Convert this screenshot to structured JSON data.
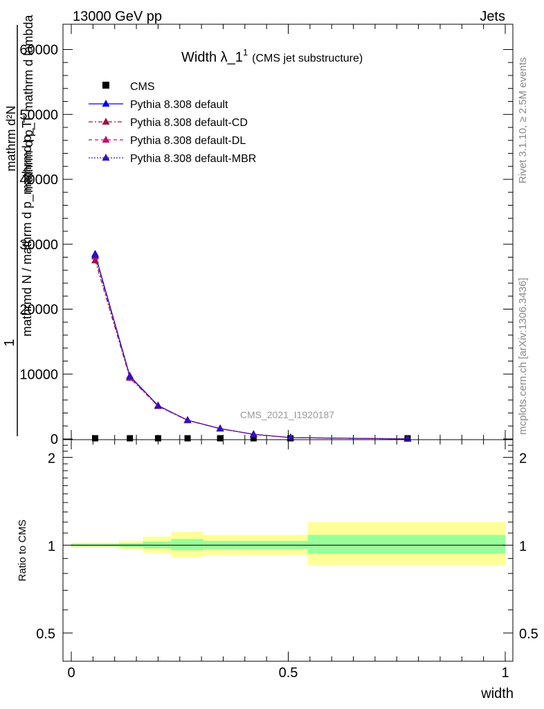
{
  "header": {
    "beam_label": "13000 GeV pp",
    "process_label": "Jets"
  },
  "side_labels": {
    "rivet": "Rivet 3.1.10, ≥ 2.5M events",
    "mcplots": "mcplots.cern.ch [arXiv:1306.3436]"
  },
  "watermark": "CMS_2021_I1920187",
  "chart_data": [
    {
      "type": "line",
      "title": "Width λ_1",
      "title_superscript": "1",
      "subtitle": "(CMS jet substructure)",
      "ylabel_fraction_numerator": "1",
      "ylabel_fraction_denominator": "mathrmd N / mathrm d p_mathrmd p_T",
      "ylabel_inner_numerator": "mathrm d²N",
      "ylabel_inner_denominator": "mathrm d p_T mathrm d lambda",
      "xlim": [
        0,
        1
      ],
      "ylim": [
        0,
        64000
      ],
      "yticks": [
        0,
        10000,
        20000,
        30000,
        40000,
        50000,
        60000
      ],
      "ytick_labels": [
        "0",
        "10000",
        "20000",
        "30000",
        "40000",
        "50000",
        "60000"
      ],
      "legend_position": "top-left",
      "x": [
        0.055,
        0.135,
        0.2,
        0.268,
        0.343,
        0.42,
        0.505,
        0.775
      ],
      "series": [
        {
          "name": "CMS",
          "color": "#000000",
          "marker": "square",
          "line": "none",
          "values": [
            0,
            0,
            0,
            0,
            0,
            0,
            0,
            0
          ]
        },
        {
          "name": "Pythia 8.308 default",
          "color": "#0000ee",
          "marker": "triangle",
          "line": "solid",
          "values": [
            28500,
            9700,
            5150,
            2900,
            1600,
            720,
            210,
            10
          ]
        },
        {
          "name": "Pythia 8.308 default-CD",
          "color": "#a01040",
          "marker": "triangle",
          "line": "dashdot",
          "values": [
            27500,
            9400,
            5050,
            2850,
            1580,
            710,
            205,
            10
          ]
        },
        {
          "name": "Pythia 8.308 default-DL",
          "color": "#c0106a",
          "marker": "triangle",
          "line": "dashed",
          "values": [
            28100,
            9550,
            5100,
            2880,
            1590,
            715,
            208,
            10
          ]
        },
        {
          "name": "Pythia 8.308 default-MBR",
          "color": "#3010c0",
          "marker": "triangle",
          "line": "dotted",
          "values": [
            28300,
            9650,
            5120,
            2890,
            1595,
            718,
            209,
            10
          ]
        }
      ]
    },
    {
      "type": "area",
      "ylabel": "Ratio to CMS",
      "xlabel": "width",
      "xlim": [
        0,
        1
      ],
      "ylim": [
        0.4,
        2.3
      ],
      "yticks": [
        0.5,
        1,
        2
      ],
      "ytick_labels": [
        "0.5",
        "1",
        "2"
      ],
      "xticks": [
        0,
        0.5,
        1
      ],
      "xtick_labels": [
        "0",
        "0.5",
        "1"
      ],
      "reference_line": 1,
      "bands": [
        {
          "x0": 0.0,
          "x1": 0.11,
          "stat_lo": 0.99,
          "stat_hi": 1.01,
          "tot_lo": 0.985,
          "tot_hi": 1.02
        },
        {
          "x0": 0.11,
          "x1": 0.165,
          "stat_lo": 0.985,
          "stat_hi": 1.015,
          "tot_lo": 0.97,
          "tot_hi": 1.035
        },
        {
          "x0": 0.165,
          "x1": 0.23,
          "stat_lo": 0.975,
          "stat_hi": 1.03,
          "tot_lo": 0.94,
          "tot_hi": 1.07
        },
        {
          "x0": 0.23,
          "x1": 0.305,
          "stat_lo": 0.96,
          "stat_hi": 1.05,
          "tot_lo": 0.91,
          "tot_hi": 1.11
        },
        {
          "x0": 0.305,
          "x1": 0.38,
          "stat_lo": 0.97,
          "stat_hi": 1.035,
          "tot_lo": 0.925,
          "tot_hi": 1.085
        },
        {
          "x0": 0.38,
          "x1": 0.545,
          "stat_lo": 0.97,
          "stat_hi": 1.035,
          "tot_lo": 0.925,
          "tot_hi": 1.085
        },
        {
          "x0": 0.545,
          "x1": 1.0,
          "stat_lo": 0.935,
          "stat_hi": 1.085,
          "tot_lo": 0.855,
          "tot_hi": 1.2
        }
      ],
      "colors": {
        "stat_band": "#99ff99",
        "total_band": "#ffff99"
      }
    }
  ]
}
